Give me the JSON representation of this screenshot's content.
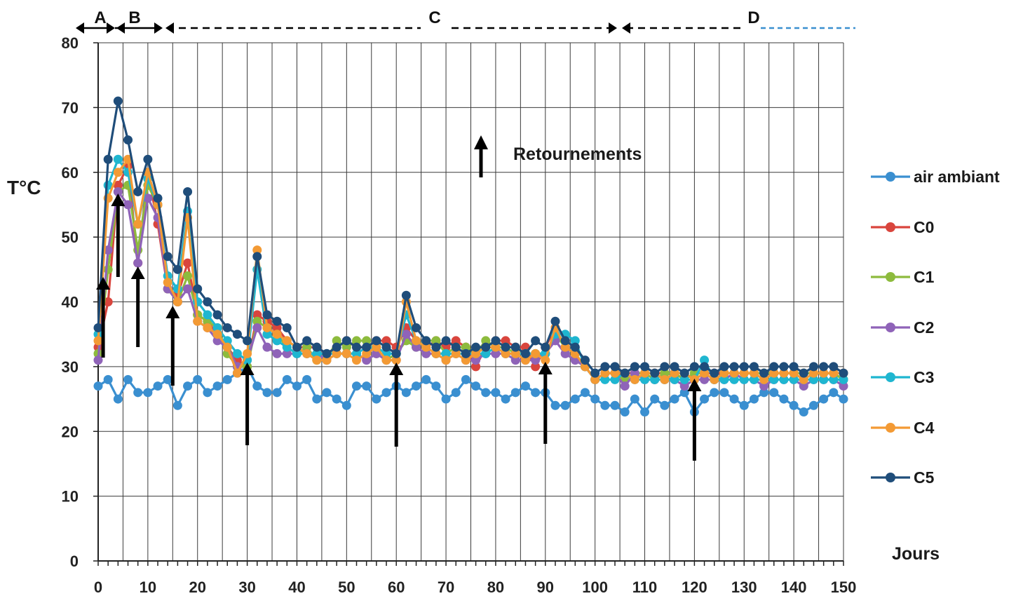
{
  "chart_data": {
    "type": "line",
    "ylabel": "T°C",
    "xlabel": "Jours",
    "xlim": [
      0,
      150
    ],
    "ylim": [
      0,
      80
    ],
    "x_ticks": [
      0,
      10,
      20,
      30,
      40,
      50,
      60,
      70,
      80,
      90,
      100,
      110,
      120,
      130,
      140,
      150
    ],
    "y_ticks": [
      0,
      10,
      20,
      30,
      40,
      50,
      60,
      70,
      80
    ],
    "grid": true,
    "legend_position": "right",
    "annotation": "Retournements",
    "phases": [
      "A",
      "B",
      "C",
      "D"
    ],
    "turning_days": [
      1,
      4,
      8,
      15,
      30,
      60,
      90,
      120
    ],
    "x": [
      0,
      2,
      4,
      6,
      8,
      10,
      12,
      14,
      16,
      18,
      20,
      22,
      24,
      26,
      28,
      30,
      32,
      34,
      36,
      38,
      40,
      42,
      44,
      46,
      48,
      50,
      52,
      54,
      56,
      58,
      60,
      62,
      64,
      66,
      68,
      70,
      72,
      74,
      76,
      78,
      80,
      82,
      84,
      86,
      88,
      90,
      92,
      94,
      96,
      98,
      100,
      102,
      104,
      106,
      108,
      110,
      112,
      114,
      116,
      118,
      120,
      122,
      124,
      126,
      128,
      130,
      132,
      134,
      136,
      138,
      140,
      142,
      144,
      146,
      148,
      150
    ],
    "series": [
      {
        "name": "air ambiant",
        "color": "#3a8fd0",
        "values": [
          27,
          28,
          25,
          28,
          26,
          26,
          27,
          28,
          24,
          27,
          28,
          26,
          27,
          28,
          29,
          30,
          27,
          26,
          26,
          28,
          27,
          28,
          25,
          26,
          25,
          24,
          27,
          27,
          25,
          26,
          27,
          26,
          27,
          28,
          27,
          25,
          26,
          28,
          27,
          26,
          26,
          25,
          26,
          27,
          26,
          26,
          24,
          24,
          25,
          26,
          25,
          24,
          24,
          23,
          25,
          23,
          25,
          24,
          25,
          26,
          23,
          25,
          26,
          26,
          25,
          24,
          25,
          26,
          26,
          25,
          24,
          23,
          24,
          25,
          26,
          25
        ]
      },
      {
        "name": "C0",
        "color": "#d9453d",
        "values": [
          33,
          40,
          58,
          61,
          46,
          60,
          52,
          42,
          41,
          46,
          38,
          37,
          35,
          33,
          31,
          30,
          38,
          37,
          36,
          34,
          33,
          33,
          33,
          32,
          33,
          34,
          33,
          33,
          34,
          34,
          33,
          36,
          34,
          33,
          34,
          33,
          34,
          33,
          30,
          33,
          34,
          34,
          33,
          33,
          30,
          33,
          36,
          33,
          32,
          30,
          28,
          29,
          29,
          29,
          29,
          29,
          29,
          29,
          29,
          28,
          29,
          29,
          29,
          29,
          29,
          29,
          29,
          29,
          29,
          29,
          29,
          29,
          29,
          29,
          29,
          28
        ]
      },
      {
        "name": "C1",
        "color": "#8dbb3d",
        "values": [
          32,
          45,
          57,
          58,
          48,
          58,
          55,
          42,
          40,
          44,
          38,
          37,
          36,
          32,
          30,
          30,
          37,
          36,
          35,
          33,
          32,
          33,
          31,
          31,
          34,
          33,
          34,
          34,
          32,
          31,
          32,
          34,
          33,
          34,
          34,
          32,
          33,
          33,
          32,
          34,
          33,
          33,
          32,
          32,
          32,
          32,
          35,
          33,
          32,
          30,
          28,
          29,
          29,
          28,
          29,
          29,
          28,
          29,
          29,
          28,
          29,
          29,
          28,
          29,
          29,
          29,
          29,
          29,
          29,
          29,
          29,
          29,
          29,
          29,
          29,
          28
        ]
      },
      {
        "name": "C2",
        "color": "#8f63b8",
        "values": [
          31,
          48,
          57,
          55,
          46,
          56,
          53,
          42,
          40,
          42,
          37,
          36,
          34,
          33,
          30,
          31,
          36,
          33,
          32,
          32,
          32,
          32,
          32,
          31,
          32,
          32,
          32,
          31,
          32,
          31,
          31,
          35,
          33,
          32,
          32,
          31,
          32,
          31,
          31,
          32,
          32,
          32,
          31,
          31,
          31,
          32,
          34,
          32,
          31,
          30,
          28,
          29,
          29,
          27,
          29,
          28,
          28,
          28,
          28,
          27,
          28,
          28,
          28,
          28,
          29,
          28,
          28,
          27,
          28,
          28,
          28,
          27,
          28,
          28,
          28,
          27
        ]
      },
      {
        "name": "C3",
        "color": "#1fb6d0",
        "values": [
          35,
          58,
          62,
          60,
          52,
          59,
          55,
          44,
          42,
          54,
          40,
          38,
          36,
          34,
          32,
          31,
          45,
          35,
          34,
          33,
          32,
          32,
          32,
          32,
          32,
          32,
          32,
          33,
          33,
          32,
          32,
          38,
          34,
          33,
          32,
          32,
          32,
          32,
          32,
          32,
          33,
          32,
          32,
          32,
          32,
          32,
          35,
          35,
          34,
          30,
          28,
          28,
          28,
          29,
          28,
          28,
          28,
          28,
          28,
          28,
          28,
          31,
          28,
          28,
          28,
          28,
          28,
          28,
          28,
          28,
          28,
          28,
          28,
          28,
          28,
          28
        ]
      },
      {
        "name": "C4",
        "color": "#f39a34",
        "values": [
          34,
          56,
          60,
          62,
          52,
          60,
          55,
          43,
          40,
          53,
          37,
          36,
          35,
          33,
          29,
          32,
          48,
          36,
          35,
          34,
          33,
          32,
          31,
          31,
          32,
          32,
          31,
          32,
          33,
          31,
          31,
          40,
          34,
          33,
          32,
          31,
          32,
          31,
          32,
          33,
          33,
          32,
          32,
          31,
          32,
          31,
          36,
          33,
          32,
          30,
          28,
          29,
          29,
          29,
          28,
          29,
          29,
          28,
          29,
          29,
          28,
          29,
          28,
          29,
          29,
          29,
          29,
          28,
          29,
          29,
          29,
          28,
          29,
          29,
          29,
          29
        ]
      },
      {
        "name": "C5",
        "color": "#1f4d7a",
        "values": [
          36,
          62,
          71,
          65,
          57,
          62,
          56,
          47,
          45,
          57,
          42,
          40,
          38,
          36,
          35,
          34,
          47,
          38,
          37,
          36,
          33,
          34,
          33,
          32,
          33,
          34,
          33,
          33,
          34,
          33,
          32,
          41,
          36,
          34,
          33,
          34,
          33,
          32,
          33,
          33,
          34,
          33,
          33,
          32,
          34,
          33,
          37,
          34,
          33,
          31,
          29,
          30,
          30,
          29,
          30,
          30,
          29,
          30,
          30,
          29,
          30,
          30,
          29,
          30,
          30,
          30,
          30,
          29,
          30,
          30,
          30,
          29,
          30,
          30,
          30,
          29
        ]
      }
    ]
  }
}
